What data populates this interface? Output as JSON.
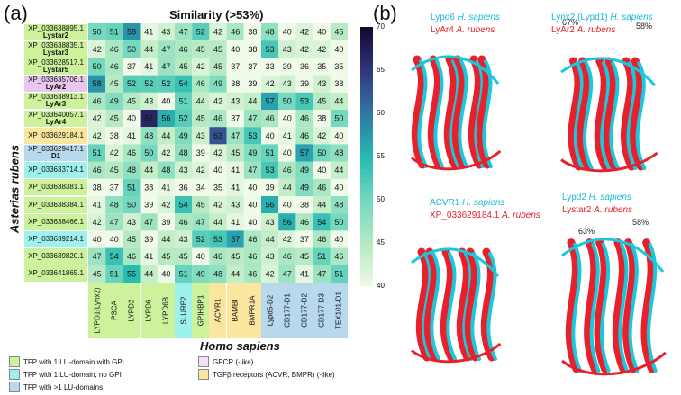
{
  "panel_a_label": "(a)",
  "panel_b_label": "(b)",
  "similarity_title": "Similarity  (>53%)",
  "species_y": "Asterias rubens",
  "species_x": "Homo sapiens",
  "colorbar_ticks": [
    "70",
    "65",
    "60",
    "55",
    "50",
    "45",
    "40"
  ],
  "row_labels": [
    {
      "id": "XP_033638895.1",
      "name": "Lystar2",
      "color": "#ccf29c"
    },
    {
      "id": "XP_033638835.1",
      "name": "Lystar3",
      "color": "#ccf29c"
    },
    {
      "id": "XP_033628517.1",
      "name": "Lystar5",
      "color": "#ccf29c"
    },
    {
      "id": "XP_033635706.1",
      "name": "LyAr2",
      "color": "#e8c8f0"
    },
    {
      "id": "XP_033638913.1",
      "name": "LyAr3",
      "color": "#ccf29c"
    },
    {
      "id": "XP_033640057.1",
      "name": "LyAr4",
      "color": "#ccf29c"
    },
    {
      "id": "XP_033629184.1",
      "name": "",
      "color": "#fbe6a0"
    },
    {
      "id": "XP_033629417.1",
      "name": "D1",
      "color": "#b8d8ee"
    },
    {
      "id": "XP_033633714.1",
      "name": "",
      "color": "#9ef2ee"
    },
    {
      "id": "XP_033638381.1",
      "name": "",
      "color": "#ccf29c"
    },
    {
      "id": "XP_033638384.1",
      "name": "",
      "color": "#ccf29c"
    },
    {
      "id": "XP_033638466.1",
      "name": "",
      "color": "#ccf29c"
    },
    {
      "id": "XP_033639214.1",
      "name": "",
      "color": "#9ef2ee"
    },
    {
      "id": "XP_033639820.1",
      "name": "",
      "color": "#ccf29c"
    },
    {
      "id": "XP_033641865.1",
      "name": "",
      "color": "#ccf29c"
    }
  ],
  "col_labels": [
    {
      "name": "LYPD1(Lynx2)",
      "color": "#ccf29c"
    },
    {
      "name": "PSCA",
      "color": "#ccf29c"
    },
    {
      "name": "LYPD2",
      "color": "#ccf29c"
    },
    {
      "name": "LYPD6",
      "color": "#ccf29c"
    },
    {
      "name": "LYPD6B",
      "color": "#ccf29c"
    },
    {
      "name": "SLURP2",
      "color": "#9ef2ee"
    },
    {
      "name": "GPIHBP1",
      "color": "#ccf29c"
    },
    {
      "name": "ACVR1",
      "color": "#fbe6a0"
    },
    {
      "name": "BAMBI",
      "color": "#fbe6a0"
    },
    {
      "name": "BMPR1A",
      "color": "#fbe6a0"
    },
    {
      "name": "Lypd5-D2",
      "color": "#b8d8ee"
    },
    {
      "name": "CD177-D1",
      "color": "#b8d8ee"
    },
    {
      "name": "CD177-D2",
      "color": "#b8d8ee"
    },
    {
      "name": "CD177-D3",
      "color": "#b8d8ee"
    },
    {
      "name": "TEX101-D1",
      "color": "#b8d8ee"
    }
  ],
  "chart_data": {
    "type": "heatmap",
    "title": "Similarity  (>53%)",
    "xlabel": "Homo sapiens",
    "ylabel": "Asterias rubens",
    "zlim": [
      40,
      70
    ],
    "rows": [
      "XP_033638895.1 Lystar2",
      "XP_033638835.1 Lystar3",
      "XP_033628517.1 Lystar5",
      "XP_033635706.1 LyAr2",
      "XP_033638913.1 LyAr3",
      "XP_033640057.1 LyAr4",
      "XP_033629184.1",
      "XP_033629417.1 D1",
      "XP_033633714.1",
      "XP_033638381.1",
      "XP_033638384.1",
      "XP_033638466.1",
      "XP_033639214.1",
      "XP_033639820.1",
      "XP_033641865.1"
    ],
    "columns": [
      "LYPD1(Lynx2)",
      "PSCA",
      "LYPD2",
      "LYPD6",
      "LYPD6B",
      "SLURP2",
      "GPIHBP1",
      "ACVR1",
      "BAMBI",
      "BMPR1A",
      "Lypd5-D2",
      "CD177-D1",
      "CD177-D2",
      "CD177-D3",
      "TEX101-D1"
    ],
    "values": [
      [
        50,
        51,
        58,
        41,
        43,
        47,
        52,
        42,
        46,
        38,
        48,
        40,
        42,
        40,
        45
      ],
      [
        42,
        46,
        50,
        44,
        47,
        46,
        45,
        45,
        40,
        38,
        53,
        43,
        42,
        42,
        40
      ],
      [
        50,
        46,
        37,
        41,
        47,
        45,
        42,
        45,
        37,
        37,
        33,
        39,
        36,
        35,
        35
      ],
      [
        58,
        45,
        52,
        52,
        52,
        54,
        46,
        49,
        38,
        39,
        42,
        43,
        39,
        43,
        38
      ],
      [
        46,
        49,
        45,
        43,
        40,
        51,
        44,
        42,
        43,
        44,
        57,
        50,
        53,
        45,
        44
      ],
      [
        42,
        45,
        40,
        67,
        56,
        52,
        45,
        46,
        37,
        47,
        46,
        40,
        46,
        38,
        50
      ],
      [
        42,
        38,
        41,
        48,
        44,
        49,
        43,
        63,
        47,
        53,
        40,
        41,
        46,
        42,
        40
      ],
      [
        51,
        42,
        46,
        50,
        42,
        48,
        39,
        42,
        45,
        49,
        51,
        40,
        57,
        50,
        48
      ],
      [
        46,
        45,
        48,
        44,
        48,
        43,
        42,
        40,
        41,
        47,
        53,
        46,
        49,
        40,
        44
      ],
      [
        38,
        37,
        51,
        38,
        41,
        36,
        34,
        35,
        41,
        40,
        39,
        44,
        49,
        46,
        40
      ],
      [
        41,
        48,
        50,
        39,
        42,
        54,
        45,
        42,
        43,
        40,
        56,
        40,
        38,
        44,
        48
      ],
      [
        42,
        47,
        43,
        47,
        39,
        46,
        47,
        44,
        41,
        40,
        43,
        56,
        46,
        54,
        50
      ],
      [
        40,
        40,
        45,
        39,
        44,
        43,
        52,
        53,
        57,
        46,
        44,
        42,
        37,
        46,
        40
      ],
      [
        47,
        54,
        46,
        41,
        45,
        45,
        40,
        46,
        45,
        46,
        43,
        46,
        45,
        51,
        46
      ],
      [
        45,
        51,
        55,
        44,
        40,
        51,
        49,
        48,
        44,
        46,
        42,
        47,
        41,
        47,
        51
      ]
    ]
  },
  "legend": [
    {
      "label": "TFP with 1 LU-domain with GPI",
      "color": "#ccf29c"
    },
    {
      "label": "TFP with 1 LU-domain, no GPI",
      "color": "#9ef2ee"
    },
    {
      "label": "TFP with >1 LU-domains",
      "color": "#b8d8ee"
    },
    {
      "label": "GPCR (-like)",
      "color": "#f3dff8"
    },
    {
      "label": "TGFβ receptors (ACVR, BMPR) (-like)",
      "color": "#fbe6a0"
    }
  ],
  "structures": [
    {
      "human": "Lypd6",
      "human_species": "H. sapiens",
      "star": "LyAr4",
      "star_species": "A. rubens",
      "pct": "67%"
    },
    {
      "human": "Lynx2 (Lypd1)",
      "human_species": "H. sapiens",
      "star": "LyAr2",
      "star_species": "A. rubens",
      "pct": "58%"
    },
    {
      "human": "ACVR1",
      "human_species": "H. sapiens",
      "star": "XP_033629184.1",
      "star_species": "A. rubens",
      "pct": "63%"
    },
    {
      "human": "Lypd2",
      "human_species": "H. sapiens",
      "star": "Lystar2",
      "star_species": "A. rubens",
      "pct": "58%"
    }
  ],
  "colors": {
    "human_structure": "#18c8dc",
    "star_structure": "#e8202c"
  }
}
